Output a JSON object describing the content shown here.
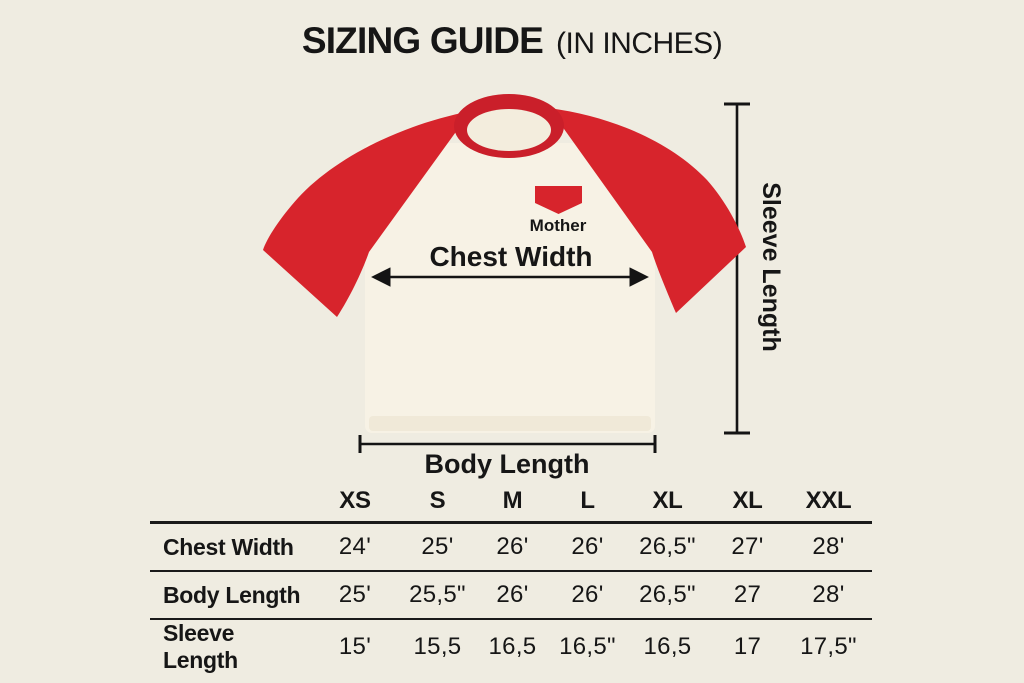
{
  "title": {
    "main": "SIZING GUIDE",
    "suffix": "(IN INCHES)"
  },
  "diagram": {
    "logo_text": "Mother",
    "chest_width_label": "Chest Width",
    "body_length_label": "Body Length",
    "sleeve_length_label": "Sleeve Length"
  },
  "size_table": {
    "columns": [
      "XS",
      "S",
      "M",
      "L",
      "XL",
      "XL",
      "XXL"
    ],
    "rows": [
      {
        "label": "Chest Width",
        "values": [
          "24'",
          "25'",
          "26'",
          "26'",
          "26,5\"",
          "27'",
          "28'"
        ]
      },
      {
        "label": "Body Length",
        "values": [
          "25'",
          "25,5\"",
          "26'",
          "26'",
          "26,5\"",
          "27",
          "28'"
        ]
      },
      {
        "label": "Sleeve Length",
        "values": [
          "15'",
          "15,5",
          "16,5",
          "16,5\"",
          "16,5",
          "17",
          "17,5\""
        ]
      }
    ]
  },
  "colors": {
    "background": "#efece1",
    "red": "#d7242c",
    "collar_red": "#ca1f2a",
    "shirt_body": "#f7f2e5",
    "hem": "#f0e9d8",
    "ink": "#161616"
  }
}
